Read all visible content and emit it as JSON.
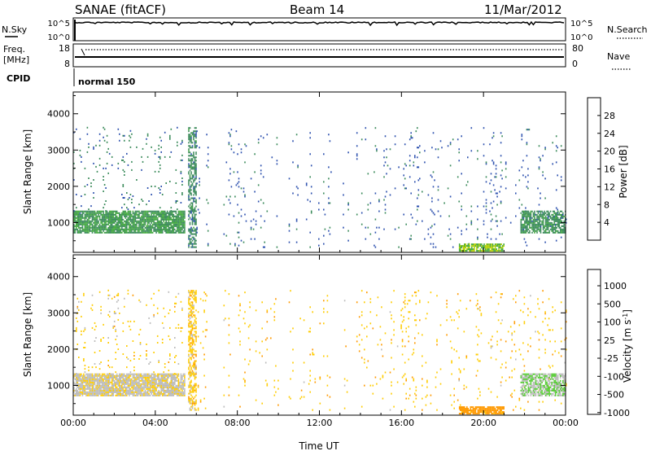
{
  "header": {
    "station": "SANAE (fitACF)",
    "beam": "Beam 14",
    "date": "11/Mar/2012"
  },
  "panels": {
    "nsky_label": "N.Sky",
    "nsearch_label": "N.Search",
    "noise_ticks": [
      "10^5",
      "10^0"
    ],
    "freq_label_1": "Freq.",
    "freq_label_2": "[MHz]",
    "freq_ticks": [
      "18",
      "8"
    ],
    "nave_label": "Nave",
    "nave_ticks": [
      "80",
      "0"
    ],
    "cpid_label": "CPID",
    "cpid_text": "normal 150"
  },
  "chart_data": [
    {
      "type": "heatmap",
      "name": "power",
      "ylabel": "Slant Range [km]",
      "ylim": [
        180,
        4600
      ],
      "yticks": [
        1000,
        2000,
        3000,
        4000
      ],
      "ytick_labels": [
        "1000",
        "2000",
        "3000",
        "4000"
      ],
      "xlim_hours": [
        0,
        24
      ],
      "xticks_hours": [
        0,
        4,
        8,
        12,
        16,
        20,
        24
      ],
      "colorbar": {
        "label": "Power [dB]",
        "tick_labels": [
          "28",
          "24",
          "20",
          "16",
          "12",
          "8",
          "4"
        ],
        "range": [
          0,
          30
        ],
        "colors": [
          "#0000ff",
          "#2b4fae",
          "#3a8a5a",
          "#44aa3f",
          "#b3d000",
          "#ffc300",
          "#ff7f00",
          "#ff2200"
        ]
      },
      "regions": [
        {
          "t": [
            0.0,
            5.4
          ],
          "r": [
            700,
            1300
          ],
          "density": 0.85,
          "vmean": 11,
          "vspread": 4
        },
        {
          "t": [
            0.0,
            5.4
          ],
          "r": [
            1300,
            3600
          ],
          "density": 0.06,
          "vmean": 8,
          "vspread": 3
        },
        {
          "t": [
            5.6,
            6.0
          ],
          "r": [
            300,
            3600
          ],
          "density": 0.55,
          "vmean": 9,
          "vspread": 4
        },
        {
          "t": [
            6.0,
            24.0
          ],
          "r": [
            300,
            3600
          ],
          "density": 0.05,
          "vmean": 7,
          "vspread": 3
        },
        {
          "t": [
            18.8,
            21.0
          ],
          "r": [
            200,
            400
          ],
          "density": 0.8,
          "vmean": 15,
          "vspread": 5
        },
        {
          "t": [
            21.8,
            24.0
          ],
          "r": [
            700,
            1300
          ],
          "density": 0.75,
          "vmean": 10,
          "vspread": 4
        }
      ]
    },
    {
      "type": "heatmap",
      "name": "velocity",
      "ylabel": "Slant Range [km]",
      "ylim": [
        180,
        4600
      ],
      "yticks": [
        1000,
        2000,
        3000,
        4000
      ],
      "ytick_labels": [
        "1000",
        "2000",
        "3000",
        "4000"
      ],
      "xlim_hours": [
        0,
        24
      ],
      "xticks_hours": [
        0,
        4,
        8,
        12,
        16,
        20,
        24
      ],
      "xtick_labels": [
        "00:00",
        "04:00",
        "08:00",
        "12:00",
        "16:00",
        "20:00",
        "00:00"
      ],
      "xlabel": "Time UT",
      "colorbar": {
        "label": "Velocity [m s^-1]",
        "tick_labels": [
          "1000",
          "500",
          "100",
          "25",
          "-25",
          "-100",
          "-500",
          "-1000"
        ],
        "range": [
          -1200,
          1200
        ],
        "colors": [
          "#ff0000",
          "#ff5500",
          "#ff9900",
          "#ffcc00",
          "#bbbbbb",
          "#55cc33",
          "#2e8b57",
          "#1a3fa8"
        ]
      },
      "regions": [
        {
          "t": [
            0.0,
            5.4
          ],
          "r": [
            700,
            1300
          ],
          "density": 0.85,
          "vmean": 50,
          "vspread": 250
        },
        {
          "t": [
            0.0,
            5.4
          ],
          "r": [
            1300,
            3600
          ],
          "density": 0.06,
          "vmean": -100,
          "vspread": 400
        },
        {
          "t": [
            5.6,
            6.0
          ],
          "r": [
            300,
            3600
          ],
          "density": 0.55,
          "vmean": -150,
          "vspread": 400
        },
        {
          "t": [
            6.0,
            24.0
          ],
          "r": [
            300,
            3600
          ],
          "density": 0.05,
          "vmean": -200,
          "vspread": 350
        },
        {
          "t": [
            18.8,
            21.0
          ],
          "r": [
            200,
            400
          ],
          "density": 0.8,
          "vmean": -400,
          "vspread": 200
        },
        {
          "t": [
            21.8,
            24.0
          ],
          "r": [
            700,
            1300
          ],
          "density": 0.75,
          "vmean": 300,
          "vspread": 300
        }
      ]
    }
  ],
  "data_gaps_hours": [
    [
      6.6,
      7.2
    ],
    [
      10.0,
      10.5
    ],
    [
      12.6,
      13.1
    ],
    [
      13.4,
      13.8
    ]
  ]
}
